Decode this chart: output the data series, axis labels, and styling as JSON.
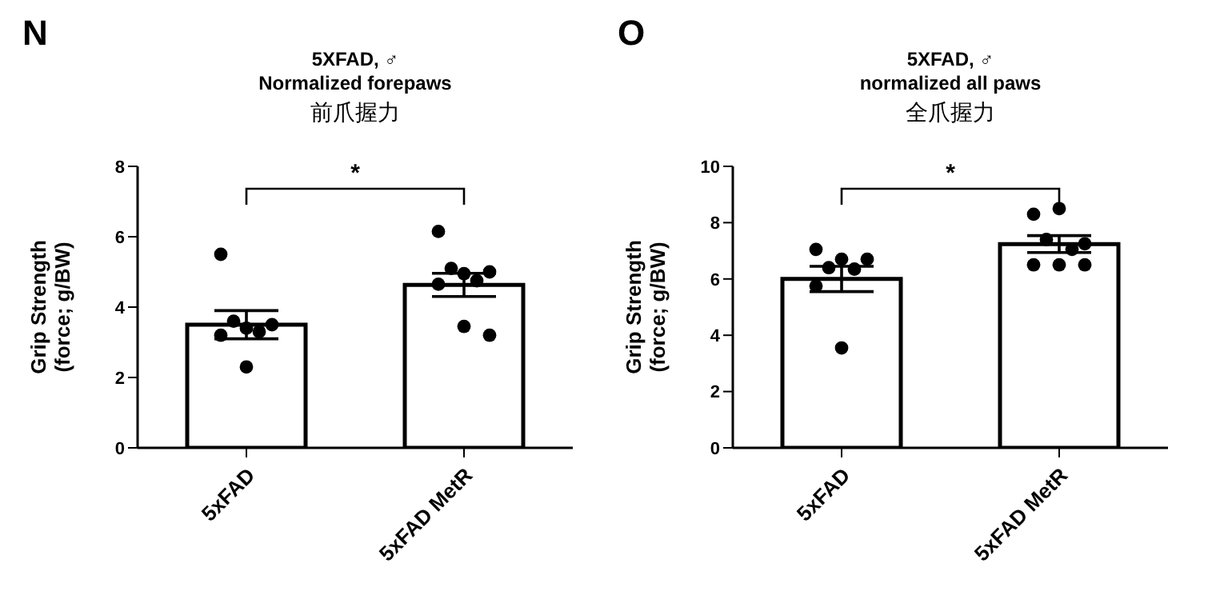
{
  "chart_data": [
    {
      "type": "bar",
      "title": "5XFAD, ♂",
      "subtitle": "Normalized forepaws",
      "ylabel": "Grip Strength\n(force; g/BW)",
      "categories": [
        "5xFAD",
        "5xFAD MetR"
      ],
      "ylim": [
        0,
        8
      ],
      "yticks": [
        0,
        2,
        4,
        6,
        8
      ],
      "annotations": [
        "N",
        "前爪握力",
        "*"
      ],
      "series": [
        {
          "color": "#ffffff",
          "values": [
            3.5,
            4.63
          ],
          "errors": [
            0.4,
            0.33
          ]
        },
        {
          "type": "scatter",
          "color": "#000000",
          "x": [
            "5xFAD",
            "5xFAD",
            "5xFAD",
            "5xFAD",
            "5xFAD",
            "5xFAD",
            "5xFAD",
            "5xFAD MetR",
            "5xFAD MetR",
            "5xFAD MetR",
            "5xFAD MetR",
            "5xFAD MetR",
            "5xFAD MetR",
            "5xFAD MetR",
            "5xFAD MetR"
          ],
          "values": [
            5.5,
            3.4,
            3.5,
            3.6,
            3.3,
            3.2,
            2.3,
            6.15,
            4.95,
            5.0,
            5.1,
            4.75,
            4.65,
            3.45,
            3.2
          ]
        }
      ]
    },
    {
      "type": "bar",
      "title": "5XFAD, ♂",
      "subtitle": "normalized all paws",
      "ylabel": "Grip Strength\n(force; g/BW)",
      "categories": [
        "5xFAD",
        "5xFAD MetR"
      ],
      "ylim": [
        0,
        10
      ],
      "yticks": [
        0,
        2,
        4,
        6,
        8,
        10
      ],
      "annotations": [
        "O",
        "全爪握力",
        "*"
      ],
      "series": [
        {
          "color": "#ffffff",
          "values": [
            6.0,
            7.24
          ],
          "errors": [
            0.45,
            0.3
          ]
        },
        {
          "type": "scatter",
          "color": "#000000",
          "x": [
            "5xFAD",
            "5xFAD",
            "5xFAD",
            "5xFAD",
            "5xFAD",
            "5xFAD",
            "5xFAD",
            "5xFAD MetR",
            "5xFAD MetR",
            "5xFAD MetR",
            "5xFAD MetR",
            "5xFAD MetR",
            "5xFAD MetR",
            "5xFAD MetR",
            "5xFAD MetR"
          ],
          "values": [
            7.05,
            6.7,
            6.7,
            6.4,
            6.35,
            5.75,
            3.55,
            8.3,
            8.5,
            7.25,
            7.4,
            7.05,
            6.5,
            6.5,
            6.5
          ]
        }
      ]
    }
  ]
}
